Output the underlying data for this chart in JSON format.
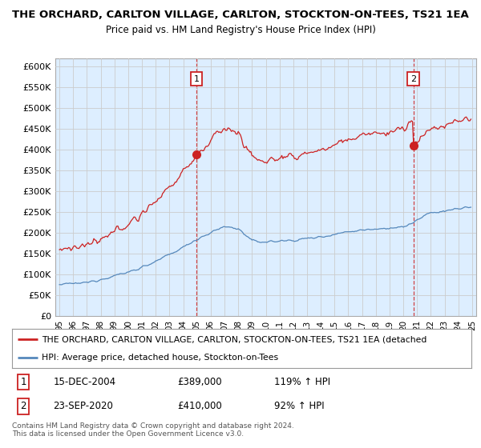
{
  "title_line1": "THE ORCHARD, CARLTON VILLAGE, CARLTON, STOCKTON-ON-TEES, TS21 1EA",
  "title_line2": "Price paid vs. HM Land Registry's House Price Index (HPI)",
  "ylabel_ticks": [
    "£0",
    "£50K",
    "£100K",
    "£150K",
    "£200K",
    "£250K",
    "£300K",
    "£350K",
    "£400K",
    "£450K",
    "£500K",
    "£550K",
    "£600K"
  ],
  "ytick_values": [
    0,
    50000,
    100000,
    150000,
    200000,
    250000,
    300000,
    350000,
    400000,
    450000,
    500000,
    550000,
    600000
  ],
  "ylim": [
    0,
    620000
  ],
  "xlim_start": 1994.7,
  "xlim_end": 2025.3,
  "xticks": [
    1995,
    1996,
    1997,
    1998,
    1999,
    2000,
    2001,
    2002,
    2003,
    2004,
    2005,
    2006,
    2007,
    2008,
    2009,
    2010,
    2011,
    2012,
    2013,
    2014,
    2015,
    2016,
    2017,
    2018,
    2019,
    2020,
    2021,
    2022,
    2023,
    2024,
    2025
  ],
  "hpi_color": "#5588bb",
  "price_color": "#cc2222",
  "bg_fill_color": "#ddeeff",
  "sale1_x": 2004.96,
  "sale1_y": 389000,
  "sale2_x": 2020.73,
  "sale2_y": 410000,
  "legend_label1": "THE ORCHARD, CARLTON VILLAGE, CARLTON, STOCKTON-ON-TEES, TS21 1EA (detached",
  "legend_label2": "HPI: Average price, detached house, Stockton-on-Tees",
  "table_row1": [
    "1",
    "15-DEC-2004",
    "£389,000",
    "119% ↑ HPI"
  ],
  "table_row2": [
    "2",
    "23-SEP-2020",
    "£410,000",
    "92% ↑ HPI"
  ],
  "footer": "Contains HM Land Registry data © Crown copyright and database right 2024.\nThis data is licensed under the Open Government Licence v3.0.",
  "background_color": "#ffffff",
  "grid_color": "#cccccc"
}
